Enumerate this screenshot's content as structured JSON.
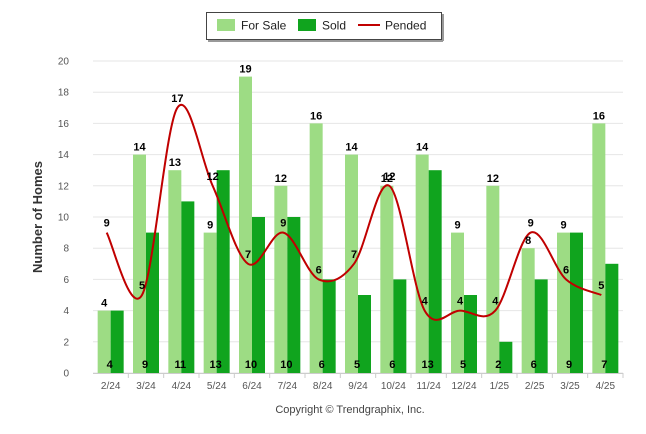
{
  "chart_data": {
    "type": "bar",
    "ylabel": "Number of Homes",
    "ylim": [
      0,
      20
    ],
    "yticks": [
      "0",
      "2",
      "4",
      "6",
      "8",
      "10",
      "12",
      "14",
      "16",
      "18",
      "20"
    ],
    "grid": true,
    "legend_position": "top-center",
    "categories": [
      "2/24",
      "3/24",
      "4/24",
      "5/24",
      "6/24",
      "7/24",
      "8/24",
      "9/24",
      "10/24",
      "11/24",
      "12/24",
      "1/25",
      "2/25",
      "3/25",
      "4/25"
    ],
    "series": [
      {
        "name": "For Sale",
        "kind": "bar",
        "color": "#9ddc84",
        "values": [
          4,
          14,
          13,
          9,
          19,
          12,
          16,
          14,
          12,
          14,
          9,
          12,
          8,
          9,
          16
        ]
      },
      {
        "name": "Sold",
        "kind": "bar",
        "color": "#10a41e",
        "values": [
          4,
          9,
          11,
          13,
          10,
          10,
          6,
          5,
          6,
          13,
          5,
          2,
          6,
          9,
          7
        ]
      },
      {
        "name": "Pended",
        "kind": "line",
        "color": "#c00000",
        "values": [
          9,
          5,
          17,
          12,
          7,
          9,
          6,
          7,
          12,
          4,
          4,
          4,
          9,
          6,
          5
        ]
      }
    ]
  },
  "footer": {
    "copyright": "Copyright © Trendgraphix, Inc."
  }
}
